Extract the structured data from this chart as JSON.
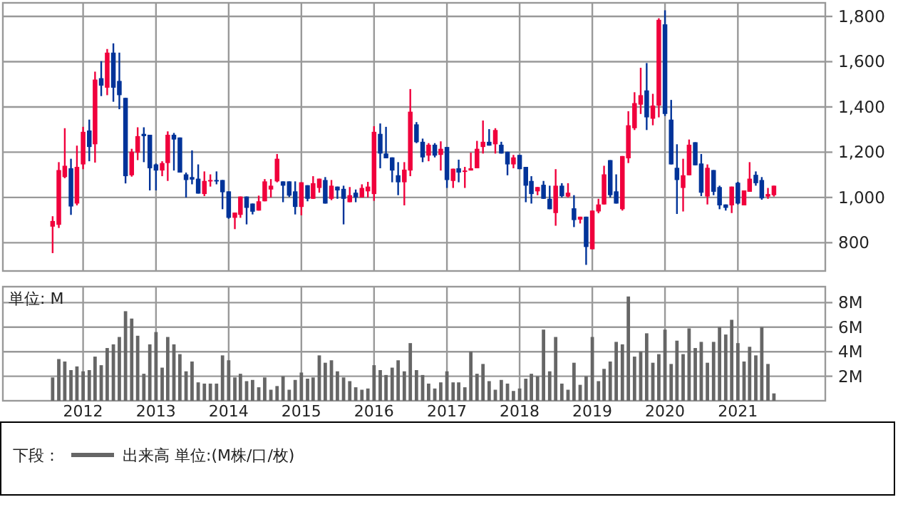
{
  "chart_data": [
    {
      "type": "candlestick",
      "x": [
        "2011-08",
        "2011-09",
        "2011-10",
        "2011-11",
        "2011-12",
        "2012-01",
        "2012-02",
        "2012-03",
        "2012-04",
        "2012-05",
        "2012-06",
        "2012-07",
        "2012-08",
        "2012-09",
        "2012-10",
        "2012-11",
        "2012-12",
        "2013-01",
        "2013-02",
        "2013-03",
        "2013-04",
        "2013-05",
        "2013-06",
        "2013-07",
        "2013-08",
        "2013-09",
        "2013-10",
        "2013-11",
        "2013-12",
        "2014-01",
        "2014-02",
        "2014-03",
        "2014-04",
        "2014-05",
        "2014-06",
        "2014-07",
        "2014-08",
        "2014-09",
        "2014-10",
        "2014-11",
        "2014-12",
        "2015-01",
        "2015-02",
        "2015-03",
        "2015-04",
        "2015-05",
        "2015-06",
        "2015-07",
        "2015-08",
        "2015-09",
        "2015-10",
        "2015-11",
        "2015-12",
        "2016-01",
        "2016-02",
        "2016-03",
        "2016-04",
        "2016-05",
        "2016-06",
        "2016-07",
        "2016-08",
        "2016-09",
        "2016-10",
        "2016-11",
        "2016-12",
        "2017-01",
        "2017-02",
        "2017-03",
        "2017-04",
        "2017-05",
        "2017-06",
        "2017-07",
        "2017-08",
        "2017-09",
        "2017-10",
        "2017-11",
        "2017-12",
        "2018-01",
        "2018-02",
        "2018-03",
        "2018-04",
        "2018-05",
        "2018-06",
        "2018-07",
        "2018-08",
        "2018-09",
        "2018-10",
        "2018-11",
        "2018-12",
        "2019-01",
        "2019-02",
        "2019-03",
        "2019-04",
        "2019-05",
        "2019-06",
        "2019-07",
        "2019-08",
        "2019-09",
        "2019-10",
        "2019-11",
        "2019-12",
        "2020-01",
        "2020-02",
        "2020-03",
        "2020-04",
        "2020-05",
        "2020-06",
        "2020-07",
        "2020-08",
        "2020-09",
        "2020-10",
        "2020-11",
        "2020-12",
        "2021-01",
        "2021-02",
        "2021-03",
        "2021-04",
        "2021-05",
        "2021-06",
        "2021-07"
      ],
      "ohlc": [
        [
          871,
          917,
          754,
          896
        ],
        [
          879,
          1156,
          865,
          1121
        ],
        [
          1090,
          1306,
          1085,
          1140
        ],
        [
          1129,
          1171,
          923,
          960
        ],
        [
          973,
          1229,
          965,
          1135
        ],
        [
          1146,
          1312,
          1125,
          1290
        ],
        [
          1296,
          1344,
          1160,
          1223
        ],
        [
          1235,
          1556,
          1154,
          1521
        ],
        [
          1527,
          1602,
          1448,
          1494
        ],
        [
          1485,
          1656,
          1452,
          1640
        ],
        [
          1640,
          1681,
          1423,
          1485
        ],
        [
          1515,
          1640,
          1390,
          1452
        ],
        [
          1440,
          1440,
          1062,
          1094
        ],
        [
          1098,
          1215,
          1092,
          1202
        ],
        [
          1198,
          1310,
          1165,
          1271
        ],
        [
          1281,
          1310,
          1156,
          1271
        ],
        [
          1277,
          1277,
          1031,
          1129
        ],
        [
          1146,
          1150,
          1031,
          1119
        ],
        [
          1119,
          1160,
          1094,
          1152
        ],
        [
          1152,
          1292,
          1073,
          1277
        ],
        [
          1277,
          1285,
          1119,
          1256
        ],
        [
          1265,
          1265,
          1110,
          1110
        ],
        [
          1102,
          1110,
          1000,
          1077
        ],
        [
          1090,
          1208,
          1058,
          1079
        ],
        [
          1083,
          1146,
          1017,
          1017
        ],
        [
          1015,
          1115,
          1006,
          1073
        ],
        [
          1073,
          1102,
          1048,
          1077
        ],
        [
          1077,
          1115,
          1058,
          1071
        ],
        [
          1077,
          1077,
          948,
          1023
        ],
        [
          1027,
          1027,
          906,
          910
        ],
        [
          910,
          933,
          860,
          933
        ],
        [
          923,
          1004,
          910,
          1004
        ],
        [
          1004,
          1004,
          881,
          954
        ],
        [
          973,
          973,
          925,
          937
        ],
        [
          942,
          1008,
          942,
          983
        ],
        [
          983,
          1081,
          983,
          1071
        ],
        [
          1035,
          1081,
          1000,
          1052
        ],
        [
          1071,
          1192,
          1067,
          1171
        ],
        [
          1071,
          1071,
          979,
          1052
        ],
        [
          1071,
          1071,
          1002,
          1008
        ],
        [
          1027,
          1071,
          925,
          958
        ],
        [
          958,
          1067,
          921,
          1067
        ],
        [
          1054,
          1054,
          983,
          994
        ],
        [
          994,
          1094,
          994,
          1063
        ],
        [
          1042,
          1083,
          1021,
          1083
        ],
        [
          1077,
          1090,
          973,
          973
        ],
        [
          994,
          1077,
          988,
          1052
        ],
        [
          1048,
          1048,
          994,
          1031
        ],
        [
          1038,
          1052,
          881,
          994
        ],
        [
          979,
          1046,
          979,
          1010
        ],
        [
          1021,
          1035,
          979,
          1000
        ],
        [
          1000,
          1058,
          1000,
          1042
        ],
        [
          1027,
          1069,
          1000,
          1048
        ],
        [
          1015,
          1315,
          985,
          1290
        ],
        [
          1281,
          1327,
          1129,
          1194
        ],
        [
          1194,
          1312,
          1173,
          1173
        ],
        [
          1177,
          1177,
          1067,
          1119
        ],
        [
          1098,
          1156,
          1010,
          1067
        ],
        [
          1067,
          1156,
          965,
          1123
        ],
        [
          1119,
          1479,
          1094,
          1379
        ],
        [
          1323,
          1333,
          1240,
          1244
        ],
        [
          1246,
          1260,
          1156,
          1177
        ],
        [
          1185,
          1240,
          1160,
          1233
        ],
        [
          1233,
          1240,
          1177,
          1185
        ],
        [
          1188,
          1248,
          1119,
          1215
        ],
        [
          1223,
          1223,
          1042,
          1077
        ],
        [
          1073,
          1127,
          1042,
          1127
        ],
        [
          1129,
          1167,
          1067,
          1110
        ],
        [
          1115,
          1135,
          1042,
          1119
        ],
        [
          1119,
          1198,
          1119,
          1129
        ],
        [
          1129,
          1250,
          1129,
          1215
        ],
        [
          1223,
          1340,
          1194,
          1246
        ],
        [
          1246,
          1302,
          1229,
          1229
        ],
        [
          1235,
          1306,
          1194,
          1298
        ],
        [
          1233,
          1246,
          1194,
          1194
        ],
        [
          1202,
          1202,
          1098,
          1146
        ],
        [
          1146,
          1188,
          1129,
          1177
        ],
        [
          1188,
          1188,
          1125,
          1125
        ],
        [
          1135,
          1135,
          979,
          1052
        ],
        [
          1073,
          1094,
          973,
          1015
        ],
        [
          1027,
          1046,
          1010,
          1046
        ],
        [
          1056,
          1073,
          994,
          994
        ],
        [
          994,
          1052,
          948,
          948
        ],
        [
          931,
          1125,
          875,
          1052
        ],
        [
          1052,
          1063,
          1000,
          1006
        ],
        [
          1004,
          1063,
          1000,
          1021
        ],
        [
          952,
          1010,
          869,
          900
        ],
        [
          902,
          915,
          885,
          915
        ],
        [
          915,
          915,
          702,
          781
        ],
        [
          771,
          942,
          771,
          942
        ],
        [
          938,
          994,
          930,
          969
        ],
        [
          969,
          1140,
          969,
          1102
        ],
        [
          1165,
          1165,
          1000,
          1010
        ],
        [
          1027,
          1102,
          973,
          973
        ],
        [
          948,
          1183,
          942,
          1183
        ],
        [
          1173,
          1381,
          1152,
          1319
        ],
        [
          1306,
          1465,
          1298,
          1417
        ],
        [
          1410,
          1573,
          1369,
          1452
        ],
        [
          1473,
          1594,
          1298,
          1354
        ],
        [
          1348,
          1458,
          1319,
          1406
        ],
        [
          1406,
          1792,
          1354,
          1785
        ],
        [
          1765,
          1827,
          1360,
          1369
        ],
        [
          1344,
          1431,
          1146,
          1146
        ],
        [
          1131,
          1235,
          927,
          1077
        ],
        [
          1042,
          1171,
          938,
          1098
        ],
        [
          1098,
          1256,
          1098,
          1233
        ],
        [
          1244,
          1244,
          1142,
          1142
        ],
        [
          1150,
          1192,
          1006,
          1021
        ],
        [
          1004,
          1146,
          969,
          1131
        ],
        [
          1121,
          1121,
          1010,
          1025
        ],
        [
          1046,
          1052,
          948,
          965
        ],
        [
          969,
          969,
          942,
          954
        ],
        [
          965,
          1048,
          931,
          1048
        ],
        [
          1065,
          1069,
          969,
          973
        ],
        [
          965,
          1031,
          965,
          1031
        ],
        [
          1025,
          1156,
          1025,
          1083
        ],
        [
          1100,
          1115,
          1052,
          1063
        ],
        [
          1077,
          1090,
          990,
          996
        ],
        [
          1004,
          1042,
          994,
          1015
        ],
        [
          1010,
          1052,
          1004,
          1052
        ]
      ],
      "colors": [
        "#f0003c",
        "#f0003c",
        "#f0003c",
        "#003399",
        "#f0003c",
        "#f0003c",
        "#003399",
        "#f0003c",
        "#003399",
        "#f0003c",
        "#003399",
        "#003399",
        "#003399",
        "#f0003c",
        "#f0003c",
        "#003399",
        "#003399",
        "#003399",
        "#f0003c",
        "#f0003c",
        "#003399",
        "#003399",
        "#003399",
        "#003399",
        "#003399",
        "#f0003c",
        "#f0003c",
        "#003399",
        "#003399",
        "#003399",
        "#f0003c",
        "#f0003c",
        "#003399",
        "#003399",
        "#f0003c",
        "#f0003c",
        "#f0003c",
        "#f0003c",
        "#003399",
        "#003399",
        "#003399",
        "#f0003c",
        "#003399",
        "#f0003c",
        "#f0003c",
        "#003399",
        "#f0003c",
        "#003399",
        "#003399",
        "#f0003c",
        "#003399",
        "#f0003c",
        "#f0003c",
        "#f0003c",
        "#003399",
        "#003399",
        "#003399",
        "#003399",
        "#f0003c",
        "#f0003c",
        "#003399",
        "#003399",
        "#f0003c",
        "#003399",
        "#f0003c",
        "#003399",
        "#f0003c",
        "#003399",
        "#f0003c",
        "#f0003c",
        "#f0003c",
        "#f0003c",
        "#003399",
        "#f0003c",
        "#003399",
        "#003399",
        "#f0003c",
        "#003399",
        "#003399",
        "#003399",
        "#f0003c",
        "#003399",
        "#003399",
        "#f0003c",
        "#003399",
        "#f0003c",
        "#003399",
        "#f0003c",
        "#003399",
        "#f0003c",
        "#f0003c",
        "#f0003c",
        "#003399",
        "#003399",
        "#f0003c",
        "#f0003c",
        "#f0003c",
        "#f0003c",
        "#003399",
        "#f0003c",
        "#f0003c",
        "#003399",
        "#003399",
        "#003399",
        "#f0003c",
        "#f0003c",
        "#003399",
        "#003399",
        "#f0003c",
        "#003399",
        "#003399",
        "#003399",
        "#f0003c",
        "#003399",
        "#f0003c",
        "#f0003c",
        "#003399",
        "#003399",
        "#f0003c",
        "#f0003c"
      ],
      "xlim": [
        "2010-11-24",
        "2022-03-16"
      ],
      "xticks": [
        {
          "value": "2012-01",
          "label": null
        },
        {
          "value": "2013-01",
          "label": null
        },
        {
          "value": "2014-01",
          "label": null
        },
        {
          "value": "2015-01",
          "label": null
        },
        {
          "value": "2016-01",
          "label": null
        },
        {
          "value": "2017-01",
          "label": null
        },
        {
          "value": "2018-01",
          "label": null
        },
        {
          "value": "2019-01",
          "label": null
        },
        {
          "value": "2020-01",
          "label": null
        },
        {
          "value": "2021-01",
          "label": null
        }
      ],
      "ylim": [
        675,
        1860
      ],
      "yticks": [
        800,
        {
          "value": 1000,
          "label": "1,000"
        },
        {
          "value": 1200,
          "label": "1,200"
        },
        {
          "value": 1400,
          "label": "1,400"
        },
        {
          "value": 1600,
          "label": "1,600"
        },
        {
          "value": 1800,
          "label": "1,800"
        }
      ],
      "tick_labels": "y",
      "grid": true
    },
    {
      "type": "bar",
      "ylabel": "単位: M",
      "legend_title": "下段：",
      "legend": "bottom",
      "grid": true,
      "x": [
        "2011-08",
        "2011-09",
        "2011-10",
        "2011-11",
        "2011-12",
        "2012-01",
        "2012-02",
        "2012-03",
        "2012-04",
        "2012-05",
        "2012-06",
        "2012-07",
        "2012-08",
        "2012-09",
        "2012-10",
        "2012-11",
        "2012-12",
        "2013-01",
        "2013-02",
        "2013-03",
        "2013-04",
        "2013-05",
        "2013-06",
        "2013-07",
        "2013-08",
        "2013-09",
        "2013-10",
        "2013-11",
        "2013-12",
        "2014-01",
        "2014-02",
        "2014-03",
        "2014-04",
        "2014-05",
        "2014-06",
        "2014-07",
        "2014-08",
        "2014-09",
        "2014-10",
        "2014-11",
        "2014-12",
        "2015-01",
        "2015-02",
        "2015-03",
        "2015-04",
        "2015-05",
        "2015-06",
        "2015-07",
        "2015-08",
        "2015-09",
        "2015-10",
        "2015-11",
        "2015-12",
        "2016-01",
        "2016-02",
        "2016-03",
        "2016-04",
        "2016-05",
        "2016-06",
        "2016-07",
        "2016-08",
        "2016-09",
        "2016-10",
        "2016-11",
        "2016-12",
        "2017-01",
        "2017-02",
        "2017-03",
        "2017-04",
        "2017-05",
        "2017-06",
        "2017-07",
        "2017-08",
        "2017-09",
        "2017-10",
        "2017-11",
        "2017-12",
        "2018-01",
        "2018-02",
        "2018-03",
        "2018-04",
        "2018-05",
        "2018-06",
        "2018-07",
        "2018-08",
        "2018-09",
        "2018-10",
        "2018-11",
        "2018-12",
        "2019-01",
        "2019-02",
        "2019-03",
        "2019-04",
        "2019-05",
        "2019-06",
        "2019-07",
        "2019-08",
        "2019-09",
        "2019-10",
        "2019-11",
        "2019-12",
        "2020-01",
        "2020-02",
        "2020-03",
        "2020-04",
        "2020-05",
        "2020-06",
        "2020-07",
        "2020-08",
        "2020-09",
        "2020-10",
        "2020-11",
        "2020-12",
        "2021-01",
        "2021-02",
        "2021-03",
        "2021-04",
        "2021-05",
        "2021-06",
        "2021-07"
      ],
      "series": [
        {
          "name": "出来高 単位:(M株/口/枚)",
          "color": "#666666",
          "values": [
            1.9,
            3.4,
            3.2,
            2.5,
            2.8,
            2.4,
            2.5,
            3.6,
            2.9,
            4.3,
            4.6,
            5.2,
            7.3,
            6.7,
            5.3,
            2.2,
            4.6,
            5.6,
            2.7,
            5.2,
            4.6,
            3.8,
            2.4,
            3.2,
            1.5,
            1.4,
            1.4,
            1.4,
            3.7,
            3.3,
            1.9,
            2.2,
            1.6,
            1.7,
            1.1,
            1.9,
            0.9,
            1.2,
            2.0,
            0.9,
            1.7,
            2.3,
            1.8,
            1.9,
            3.7,
            3.1,
            3.3,
            2.4,
            1.9,
            1.6,
            1.1,
            0.9,
            1.0,
            2.9,
            2.5,
            2.1,
            2.7,
            3.3,
            2.4,
            4.7,
            2.5,
            2.1,
            1.4,
            1.0,
            1.5,
            2.4,
            1.5,
            1.5,
            1.1,
            4.0,
            2.2,
            3.0,
            1.6,
            0.9,
            1.7,
            1.4,
            0.8,
            1.0,
            1.8,
            2.2,
            2.0,
            5.8,
            2.4,
            5.2,
            1.4,
            0.9,
            3.1,
            1.3,
            2.0,
            5.2,
            1.6,
            2.6,
            3.2,
            4.8,
            4.6,
            8.5,
            3.6,
            4.0,
            5.5,
            3.1,
            3.8,
            5.8,
            3.0,
            4.9,
            3.8,
            5.9,
            4.3,
            4.8,
            3.1,
            4.8,
            6.0,
            5.4,
            6.6,
            4.7,
            3.2,
            4.4,
            3.7,
            6.0,
            3.0,
            0.6
          ]
        }
      ],
      "xlim": [
        "2010-11-24",
        "2022-03-16"
      ],
      "xticks": [
        {
          "value": "2012-01",
          "label": "2012"
        },
        {
          "value": "2013-01",
          "label": "2013"
        },
        {
          "value": "2014-01",
          "label": "2014"
        },
        {
          "value": "2015-01",
          "label": "2015"
        },
        {
          "value": "2016-01",
          "label": "2016"
        },
        {
          "value": "2017-01",
          "label": "2017"
        },
        {
          "value": "2018-01",
          "label": "2018"
        },
        {
          "value": "2019-01",
          "label": "2019"
        },
        {
          "value": "2020-01",
          "label": "2020"
        },
        {
          "value": "2021-01",
          "label": "2021"
        }
      ],
      "ylim": [
        0,
        9.3
      ],
      "yticks": [
        {
          "value": 2,
          "label": "2M"
        },
        {
          "value": 4,
          "label": "4M"
        },
        {
          "value": 6,
          "label": "6M"
        },
        {
          "value": 8,
          "label": "8M"
        }
      ]
    }
  ]
}
